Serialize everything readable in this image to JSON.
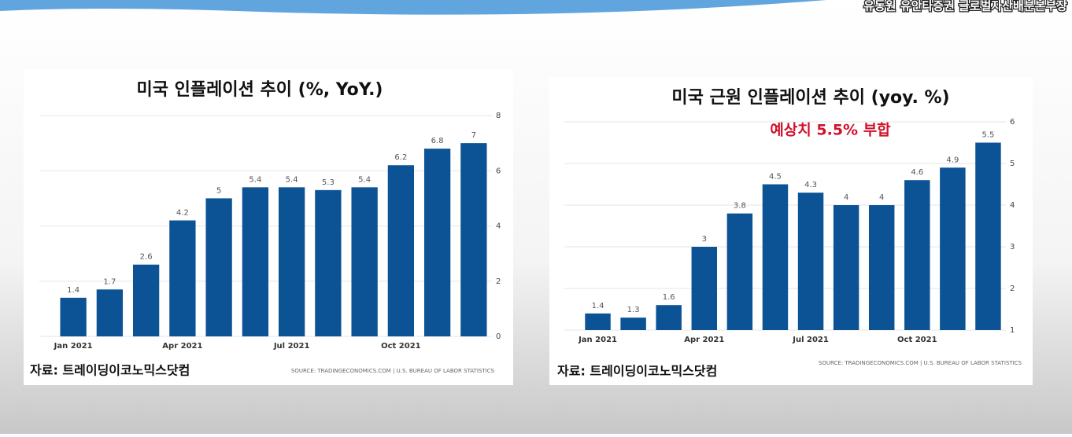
{
  "caption": "유동원 유안타증권 글로벌자산배분본부장",
  "chart_data": [
    {
      "type": "bar",
      "title": "미국 인플레이션 추이 (%, YoY.)",
      "categories": [
        "Jan 2021",
        null,
        null,
        "Apr 2021",
        null,
        null,
        "Jul 2021",
        null,
        null,
        "Oct 2021",
        null,
        null
      ],
      "values": [
        1.4,
        1.7,
        2.6,
        4.2,
        5,
        5.4,
        5.4,
        5.3,
        5.4,
        6.2,
        6.8,
        7
      ],
      "color": "#0b5394",
      "ylim": [
        0,
        8
      ],
      "yticks": [
        0,
        2,
        4,
        6,
        8
      ],
      "grid": true,
      "y_axis_side": "right",
      "source": "SOURCE: TRADINGECONOMICS.COM | U.S. BUREAU OF LABOR STATISTICS",
      "credit": "자료: 트레이딩이코노믹스닷컴"
    },
    {
      "type": "bar",
      "title": "미국 근원 인플레이션 추이 (yoy. %)",
      "annotation": "예상치 5.5% 부합",
      "categories": [
        "Jan 2021",
        null,
        null,
        "Apr 2021",
        null,
        null,
        "Jul 2021",
        null,
        null,
        "Oct 2021",
        null,
        null
      ],
      "values": [
        1.4,
        1.3,
        1.6,
        3,
        3.8,
        4.5,
        4.3,
        4,
        4,
        4.6,
        4.9,
        5.5
      ],
      "color": "#0b5394",
      "ylim": [
        1,
        6
      ],
      "yticks": [
        1,
        2,
        3,
        4,
        5,
        6
      ],
      "grid": true,
      "y_axis_side": "right",
      "source": "SOURCE: TRADINGECONOMICS.COM | U.S. BUREAU OF LABOR STATISTICS",
      "credit": "자료: 트레이딩이코노믹스닷컴"
    }
  ]
}
